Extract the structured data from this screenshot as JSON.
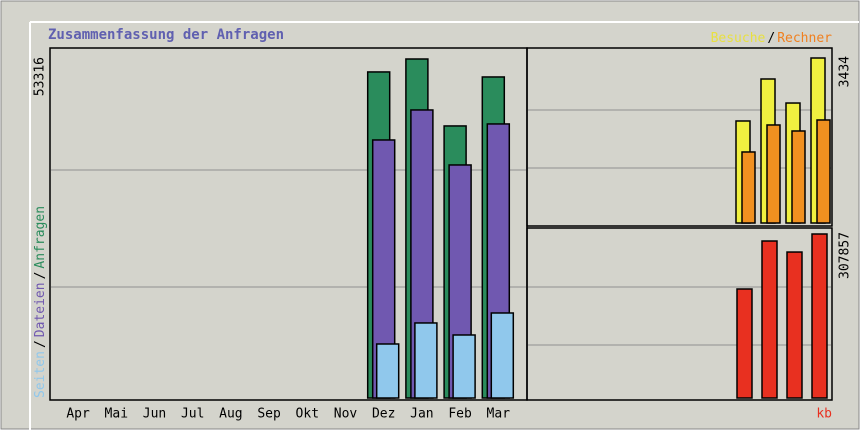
{
  "chart_data": [
    {
      "type": "bar",
      "title": "Zusammenfassung der Anfragen",
      "categories": [
        "Apr",
        "Mai",
        "Jun",
        "Jul",
        "Aug",
        "Sep",
        "Okt",
        "Nov",
        "Dez",
        "Jan",
        "Feb",
        "Mar"
      ],
      "ylim": [
        0,
        53316
      ],
      "yticks": [
        53316
      ],
      "separator": "/",
      "series": [
        {
          "name": "Anfragen",
          "color": "#2a8c5c",
          "values": [
            null,
            null,
            null,
            null,
            null,
            null,
            null,
            null,
            51280,
            53316,
            42786,
            50490
          ]
        },
        {
          "name": "Dateien",
          "color": "#7058b0",
          "values": [
            null,
            null,
            null,
            null,
            null,
            null,
            null,
            null,
            40580,
            45300,
            36650,
            43100
          ]
        },
        {
          "name": "Seiten",
          "color": "#90c8ec",
          "values": [
            null,
            null,
            null,
            null,
            null,
            null,
            null,
            null,
            8494,
            11800,
            9910,
            13370
          ]
        }
      ]
    },
    {
      "type": "bar",
      "ylim": [
        0,
        3434
      ],
      "yticks": [
        3434
      ],
      "separator": "/",
      "series": [
        {
          "name": "Besuche",
          "color": "#f0f040",
          "values": [
            2123,
            2997,
            2497,
            3434
          ]
        },
        {
          "name": "Rechner",
          "color": "#f09020",
          "values": [
            1478,
            2040,
            1915,
            2144
          ]
        }
      ]
    },
    {
      "type": "bar",
      "ylim": [
        0,
        307857
      ],
      "yticks": [
        307857
      ],
      "series": [
        {
          "name": "kb",
          "color": "#e83020",
          "values": [
            204600,
            294700,
            274000,
            307857
          ]
        }
      ]
    }
  ]
}
